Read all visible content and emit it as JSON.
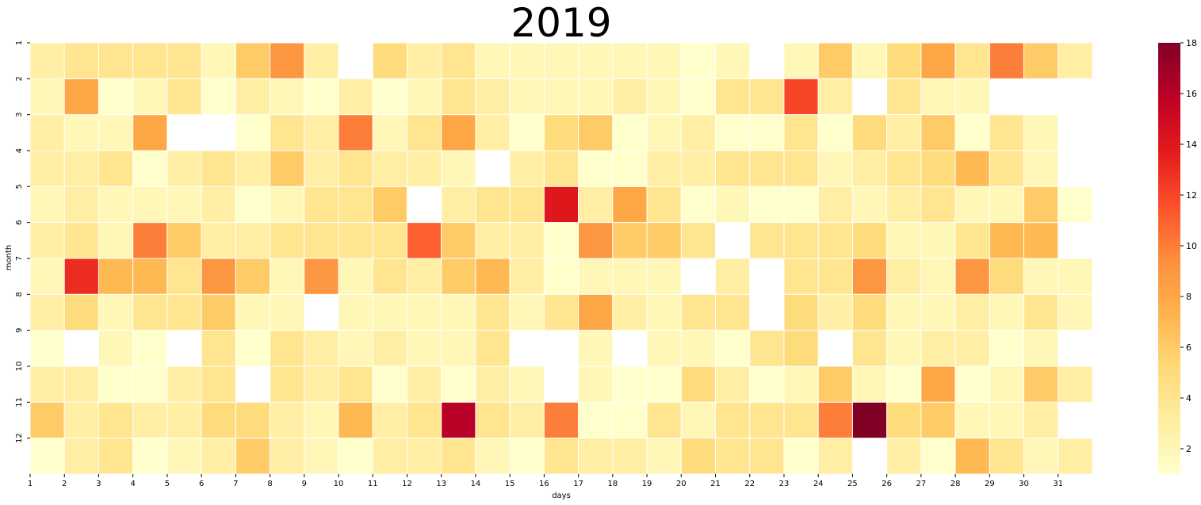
{
  "chart_data": {
    "type": "heatmap",
    "title": "2019",
    "xlabel": "days",
    "ylabel": "month",
    "x_ticks": [
      "1",
      "2",
      "3",
      "4",
      "5",
      "6",
      "7",
      "8",
      "9",
      "10",
      "11",
      "12",
      "13",
      "14",
      "15",
      "16",
      "17",
      "18",
      "19",
      "20",
      "21",
      "22",
      "23",
      "24",
      "25",
      "26",
      "27",
      "28",
      "29",
      "30",
      "31"
    ],
    "y_ticks": [
      "1",
      "2",
      "3",
      "4",
      "5",
      "6",
      "7",
      "8",
      "9",
      "10",
      "11",
      "12"
    ],
    "colorbar": {
      "min": 1,
      "max": 18,
      "ticks": [
        "2",
        "4",
        "6",
        "8",
        "10",
        "12",
        "14",
        "16",
        "18"
      ]
    },
    "colormap": [
      "#ffffcc",
      "#ffeda0",
      "#fed976",
      "#feb24c",
      "#fd8d3c",
      "#fc4e2a",
      "#e31a1c",
      "#bd0026",
      "#800026"
    ],
    "values": [
      [
        3,
        4,
        4,
        4,
        4,
        2,
        6,
        9,
        3,
        null,
        5,
        3,
        4,
        2,
        2,
        2,
        2,
        2,
        2,
        1,
        2,
        null,
        2,
        6,
        2,
        5,
        8,
        4,
        10,
        6,
        3
      ],
      [
        2,
        8,
        1,
        2,
        4,
        1,
        3,
        2,
        1,
        3,
        1,
        2,
        4,
        3,
        2,
        2,
        2,
        3,
        2,
        1,
        4,
        4,
        12,
        3,
        null,
        4,
        2,
        2,
        null,
        null,
        null
      ],
      [
        3,
        2,
        2,
        8,
        null,
        null,
        1,
        4,
        3,
        10,
        2,
        4,
        8,
        3,
        1,
        5,
        6,
        1,
        2,
        3,
        1,
        1,
        4,
        1,
        5,
        3,
        6,
        1,
        4,
        2,
        null
      ],
      [
        3,
        3,
        4,
        1,
        3,
        4,
        3,
        6,
        3,
        4,
        3,
        3,
        2,
        null,
        3,
        4,
        1,
        1,
        3,
        3,
        4,
        4,
        4,
        2,
        3,
        4,
        5,
        7,
        4,
        2,
        null
      ],
      [
        2,
        3,
        2,
        2,
        2,
        3,
        1,
        2,
        4,
        4,
        6,
        null,
        3,
        4,
        4,
        14,
        3,
        8,
        4,
        1,
        2,
        1,
        1,
        3,
        2,
        3,
        4,
        2,
        2,
        6,
        1
      ],
      [
        3,
        4,
        2,
        10,
        6,
        3,
        3,
        4,
        4,
        4,
        4,
        11,
        6,
        3,
        3,
        1,
        9,
        6,
        6,
        4,
        null,
        4,
        4,
        4,
        5,
        2,
        2,
        4,
        7,
        7,
        null
      ],
      [
        2,
        13,
        7,
        7,
        4,
        9,
        6,
        2,
        9,
        2,
        4,
        3,
        6,
        7,
        3,
        1,
        2,
        2,
        2,
        null,
        3,
        null,
        4,
        4,
        9,
        3,
        2,
        9,
        5,
        2,
        2
      ],
      [
        3,
        5,
        2,
        4,
        4,
        6,
        2,
        2,
        null,
        2,
        2,
        2,
        2,
        4,
        2,
        4,
        8,
        3,
        2,
        4,
        4,
        null,
        5,
        3,
        5,
        2,
        2,
        3,
        2,
        4,
        2
      ],
      [
        1,
        null,
        2,
        1,
        null,
        4,
        1,
        4,
        3,
        2,
        3,
        2,
        2,
        4,
        null,
        null,
        2,
        null,
        2,
        2,
        1,
        4,
        5,
        null,
        4,
        2,
        3,
        3,
        1,
        2,
        null
      ],
      [
        3,
        3,
        1,
        1,
        3,
        4,
        null,
        4,
        3,
        4,
        1,
        3,
        1,
        3,
        2,
        null,
        2,
        1,
        1,
        5,
        3,
        1,
        2,
        6,
        2,
        1,
        8,
        1,
        2,
        6,
        3
      ],
      [
        6,
        3,
        4,
        3,
        3,
        5,
        5,
        3,
        2,
        7,
        3,
        4,
        16,
        4,
        3,
        10,
        1,
        1,
        4,
        2,
        4,
        4,
        4,
        10,
        18,
        5,
        6,
        2,
        2,
        3,
        null
      ],
      [
        1,
        3,
        4,
        1,
        2,
        3,
        6,
        3,
        2,
        1,
        3,
        3,
        4,
        2,
        1,
        4,
        3,
        3,
        2,
        5,
        4,
        4,
        1,
        3,
        null,
        3,
        1,
        7,
        4,
        2,
        3
      ]
    ]
  }
}
